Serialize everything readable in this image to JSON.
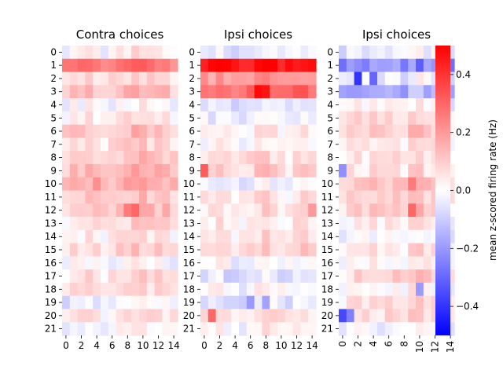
{
  "chart_data": [
    {
      "type": "heatmap",
      "title": "Contra choices",
      "y_tick_labels": [
        "0",
        "1",
        "2",
        "3",
        "4",
        "5",
        "6",
        "7",
        "8",
        "9",
        "10",
        "11",
        "12",
        "13",
        "14",
        "15",
        "16",
        "17",
        "18",
        "19",
        "20",
        "21"
      ],
      "x_tick_labels": [
        "0",
        "2",
        "4",
        "6",
        "8",
        "10",
        "12",
        "14"
      ],
      "x_tick_rotation": 0,
      "row_profiles": [
        0.0,
        0.25,
        0.05,
        0.1,
        -0.02,
        0.02,
        0.1,
        0.05,
        0.08,
        0.12,
        0.13,
        0.08,
        0.1,
        0.05,
        0.02,
        0.06,
        -0.02,
        0.05,
        0.03,
        -0.04,
        0.04,
        -0.02
      ],
      "column_profiles": [
        -0.02,
        0.02,
        0.01,
        0.03,
        0.0,
        -0.02,
        0.01,
        0.02,
        0.04,
        0.06,
        0.05,
        0.03,
        0.03,
        0.03,
        0.0
      ],
      "notable_cells": [
        {
          "row": 10,
          "col": 4,
          "value": 0.22
        },
        {
          "row": 10,
          "col": 10,
          "value": 0.2
        },
        {
          "row": 12,
          "col": 8,
          "value": 0.26
        },
        {
          "row": 12,
          "col": 9,
          "value": 0.3
        },
        {
          "row": 11,
          "col": 10,
          "value": 0.17
        },
        {
          "row": 1,
          "col": 2,
          "value": 0.3
        }
      ]
    },
    {
      "type": "heatmap",
      "title": "Ipsi choices",
      "y_tick_labels": [
        "0",
        "1",
        "2",
        "3",
        "4",
        "5",
        "6",
        "7",
        "8",
        "9",
        "10",
        "11",
        "12",
        "13",
        "14",
        "15",
        "16",
        "17",
        "18",
        "19",
        "20",
        "21"
      ],
      "x_tick_labels": [
        "0",
        "2",
        "4",
        "6",
        "8",
        "10",
        "12",
        "14"
      ],
      "x_tick_rotation": 0,
      "row_profiles": [
        -0.03,
        0.46,
        0.18,
        0.3,
        -0.05,
        -0.04,
        0.02,
        0.0,
        0.06,
        0.08,
        -0.03,
        0.04,
        0.04,
        0.03,
        0.03,
        0.08,
        0.0,
        -0.07,
        0.0,
        -0.05,
        0.05,
        0.0
      ],
      "column_profiles": [
        0.01,
        0.0,
        0.02,
        0.0,
        -0.03,
        -0.02,
        0.0,
        0.03,
        0.05,
        0.02,
        0.0,
        -0.02,
        0.02,
        0.03,
        0.0
      ],
      "notable_cells": [
        {
          "row": 3,
          "col": 7,
          "value": 0.48
        },
        {
          "row": 3,
          "col": 8,
          "value": 0.46
        },
        {
          "row": 9,
          "col": 0,
          "value": 0.32
        },
        {
          "row": 20,
          "col": 1,
          "value": 0.3
        },
        {
          "row": 19,
          "col": 6,
          "value": -0.2
        },
        {
          "row": 19,
          "col": 8,
          "value": -0.18
        },
        {
          "row": 12,
          "col": 14,
          "value": 0.2
        }
      ]
    },
    {
      "type": "heatmap",
      "title": "Ipsi choices",
      "y_tick_labels": [
        "0",
        "1",
        "2",
        "3",
        "4",
        "5",
        "6",
        "7",
        "8",
        "9",
        "10",
        "11",
        "12",
        "13",
        "14",
        "15",
        "16",
        "17",
        "18",
        "19",
        "20",
        "21"
      ],
      "x_tick_labels": [
        "0",
        "2",
        "4",
        "6",
        "8",
        "10",
        "12",
        "14"
      ],
      "x_tick_rotation": 90,
      "row_profiles": [
        -0.04,
        -0.22,
        -0.05,
        -0.18,
        0.0,
        0.05,
        0.08,
        0.03,
        0.05,
        0.04,
        0.1,
        0.08,
        0.08,
        0.02,
        -0.02,
        0.03,
        0.0,
        0.07,
        0.0,
        0.05,
        0.06,
        -0.02
      ],
      "column_profiles": [
        -0.02,
        0.0,
        0.02,
        0.0,
        0.02,
        0.0,
        0.02,
        0.02,
        0.0,
        0.04,
        0.06,
        0.02,
        0.02,
        0.02,
        -0.04
      ],
      "notable_cells": [
        {
          "row": 2,
          "col": 2,
          "value": -0.4
        },
        {
          "row": 2,
          "col": 4,
          "value": -0.3
        },
        {
          "row": 9,
          "col": 0,
          "value": -0.22
        },
        {
          "row": 20,
          "col": 0,
          "value": -0.36
        },
        {
          "row": 20,
          "col": 1,
          "value": -0.25
        },
        {
          "row": 10,
          "col": 9,
          "value": 0.26
        },
        {
          "row": 12,
          "col": 9,
          "value": 0.3
        },
        {
          "row": 18,
          "col": 10,
          "value": -0.2
        },
        {
          "row": 1,
          "col": 10,
          "value": -0.32
        }
      ]
    }
  ],
  "colorbar": {
    "label": "mean  z-scored firing rate (Hz)",
    "range": [
      -0.5,
      0.5
    ],
    "tick_values": [
      0.4,
      0.2,
      0.0,
      -0.2,
      -0.4
    ],
    "tick_labels": [
      "0.4",
      "0.2",
      "0.0",
      "−0.2",
      "−0.4"
    ],
    "colormap": "bwr",
    "low_color": "#0000ff",
    "mid_color": "#ffffff",
    "high_color": "#ff0000"
  }
}
